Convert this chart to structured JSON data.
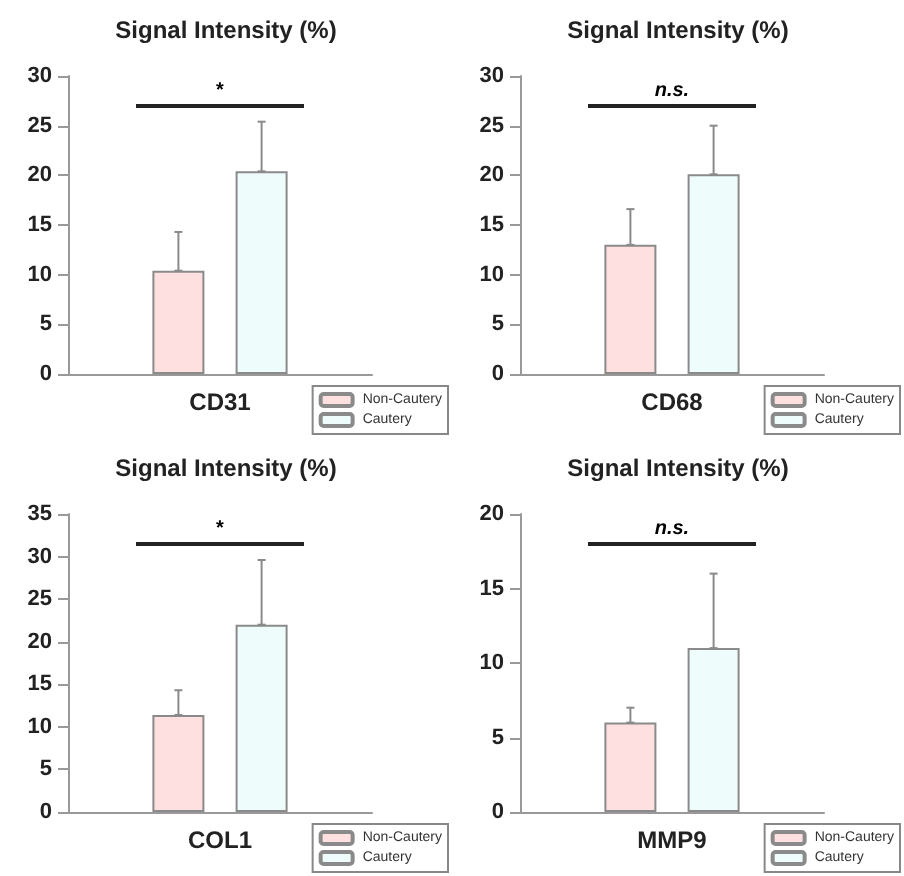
{
  "chart_data": [
    {
      "type": "bar",
      "title": "Signal Intensity (%)",
      "categories": [
        "CD31"
      ],
      "series": [
        {
          "name": "Non-Cautery",
          "color": "#ffe0e0",
          "values": [
            10.4
          ],
          "errors": [
            [
              10.4,
              14.3
            ]
          ]
        },
        {
          "name": "Cautery",
          "color": "#effcfc",
          "values": [
            20.4
          ],
          "errors": [
            [
              20.4,
              25.4
            ]
          ]
        }
      ],
      "ylim": [
        0,
        30
      ],
      "yticks": [
        0,
        5,
        10,
        15,
        20,
        25,
        30
      ],
      "annotations": [
        "*"
      ],
      "legend": "bottom right",
      "grid": false
    },
    {
      "type": "bar",
      "title": "Signal Intensity (%)",
      "categories": [
        "CD68"
      ],
      "series": [
        {
          "name": "Non-Cautery",
          "color": "#ffe0e0",
          "values": [
            13.0
          ],
          "errors": [
            [
              13.0,
              16.6
            ]
          ]
        },
        {
          "name": "Cautery",
          "color": "#effcfc",
          "values": [
            20.1
          ],
          "errors": [
            [
              20.1,
              25.0
            ]
          ]
        }
      ],
      "ylim": [
        0,
        30
      ],
      "yticks": [
        0,
        5,
        10,
        15,
        20,
        25,
        30
      ],
      "annotations": [
        "n.s."
      ],
      "legend": "bottom right",
      "grid": false
    },
    {
      "type": "bar",
      "title": "Signal Intensity (%)",
      "categories": [
        "COL1"
      ],
      "series": [
        {
          "name": "Non-Cautery",
          "color": "#ffe0e0",
          "values": [
            11.4
          ],
          "errors": [
            [
              11.4,
              14.3
            ]
          ]
        },
        {
          "name": "Cautery",
          "color": "#effcfc",
          "values": [
            22.0
          ],
          "errors": [
            [
              22.0,
              29.6
            ]
          ]
        }
      ],
      "ylim": [
        0,
        35
      ],
      "yticks": [
        0,
        5,
        10,
        15,
        20,
        25,
        30,
        35
      ],
      "annotations": [
        "*"
      ],
      "legend": "bottom right",
      "grid": false
    },
    {
      "type": "bar",
      "title": "Signal Intensity (%)",
      "categories": [
        "MMP9"
      ],
      "series": [
        {
          "name": "Non-Cautery",
          "color": "#ffe0e0",
          "values": [
            6.0
          ],
          "errors": [
            [
              6.0,
              7.0
            ]
          ]
        },
        {
          "name": "Cautery",
          "color": "#effcfc",
          "values": [
            11.0
          ],
          "errors": [
            [
              11.0,
              16.0
            ]
          ]
        }
      ],
      "ylim": [
        0,
        20
      ],
      "yticks": [
        0,
        5,
        10,
        15,
        20
      ],
      "annotations": [
        "n.s."
      ],
      "legend": "bottom right",
      "grid": false
    }
  ]
}
